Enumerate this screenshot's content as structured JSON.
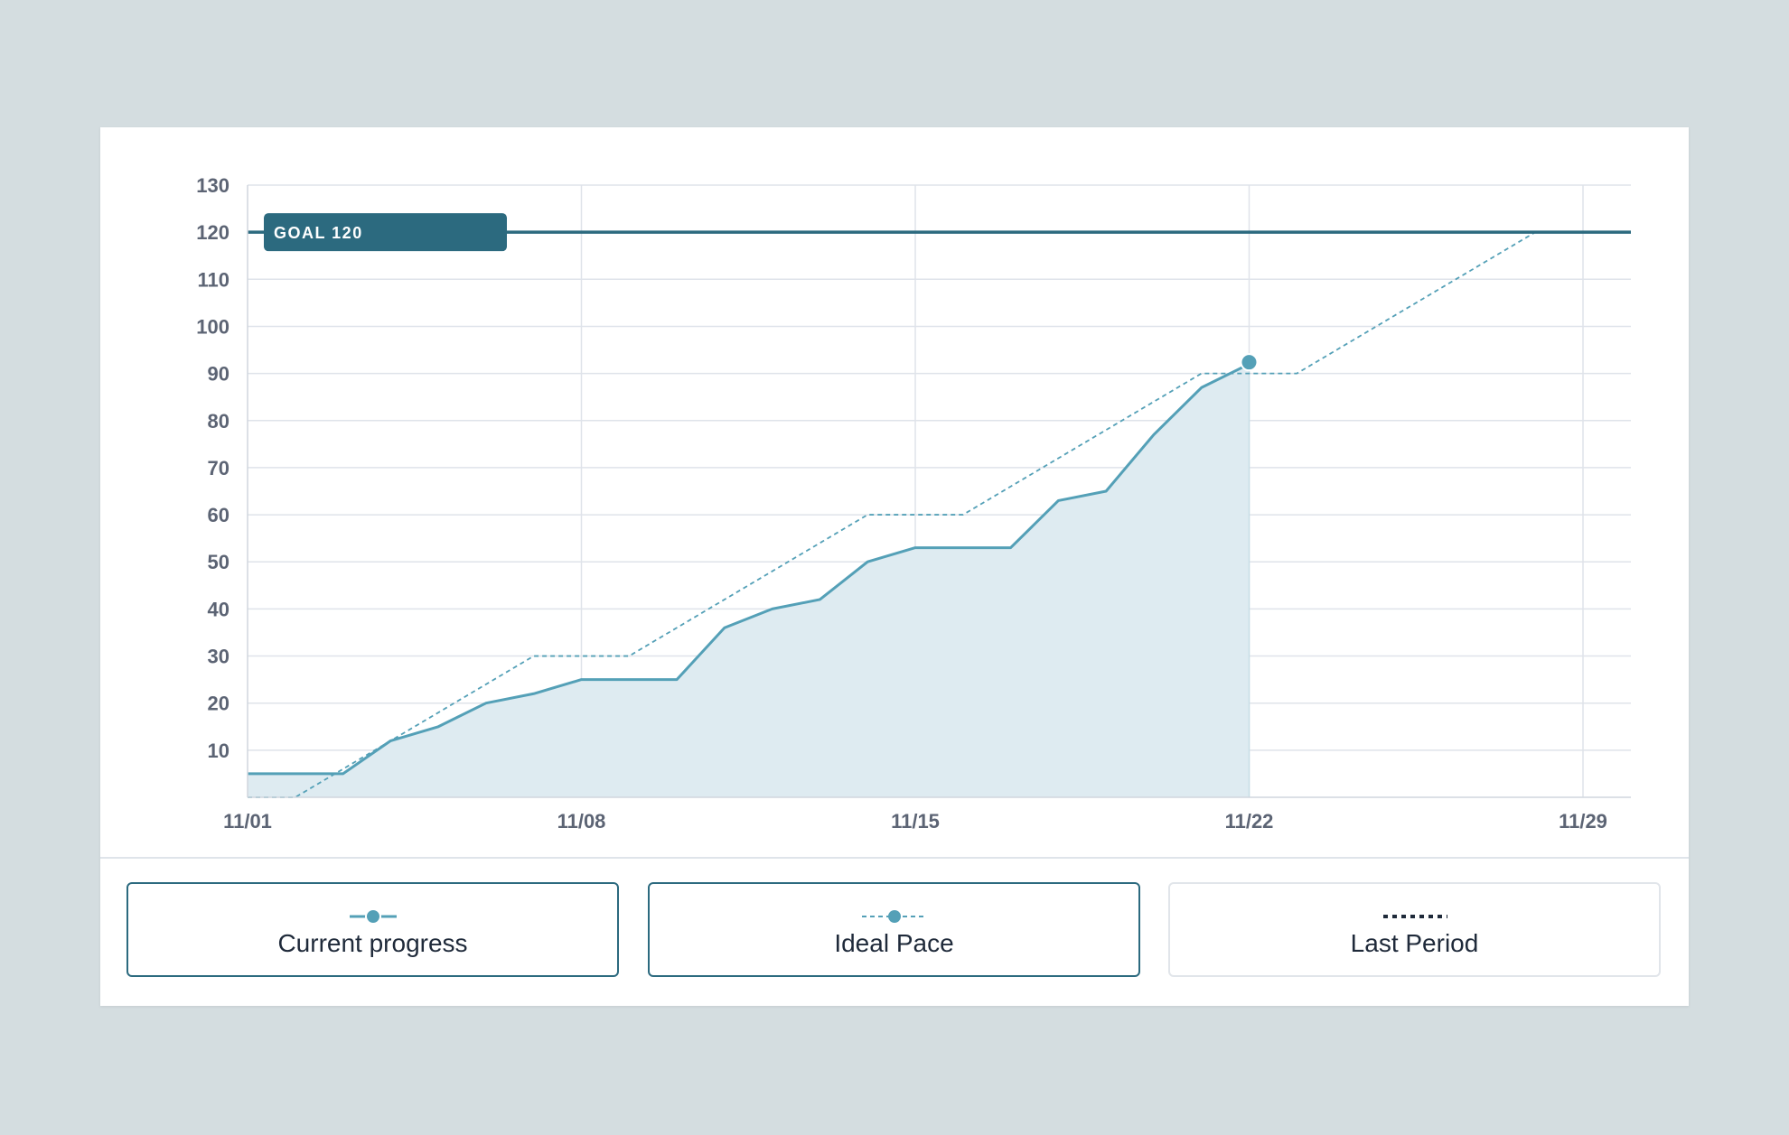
{
  "colors": {
    "background": "#d4dde0",
    "card": "#ffffff",
    "goal": "#2c6a7f",
    "current": "#54a0b7",
    "area": "#deebf1",
    "grid": "#dfe3ea",
    "axis_text": "#5c6474",
    "legend_border_active": "#2c6a7f",
    "legend_border_inactive": "#e1e5ea",
    "last_period": "#1f2a3a"
  },
  "chart_data": {
    "type": "line",
    "ylim": [
      0,
      130
    ],
    "yticks": [
      10,
      20,
      30,
      40,
      50,
      60,
      70,
      80,
      90,
      100,
      110,
      120,
      130
    ],
    "ytick_labels": [
      "10",
      "20",
      "30",
      "40",
      "50",
      "60",
      "70",
      "80",
      "90",
      "100",
      "110",
      "120",
      "130"
    ],
    "xlim": [
      "11/01",
      "11/30"
    ],
    "xticks": [
      "11/01",
      "11/08",
      "11/15",
      "11/22",
      "11/29"
    ],
    "grid": true,
    "goal": {
      "value": 120,
      "label": "GOAL 120"
    },
    "series": [
      {
        "name": "Current progress",
        "style": "solid-area",
        "points": [
          [
            "11/01",
            5
          ],
          [
            "11/02",
            5
          ],
          [
            "11/03",
            5
          ],
          [
            "11/04",
            12
          ],
          [
            "11/05",
            15
          ],
          [
            "11/06",
            20
          ],
          [
            "11/07",
            22
          ],
          [
            "11/08",
            25
          ],
          [
            "11/09",
            25
          ],
          [
            "11/10",
            25
          ],
          [
            "11/11",
            36
          ],
          [
            "11/12",
            40
          ],
          [
            "11/13",
            42
          ],
          [
            "11/14",
            50
          ],
          [
            "11/15",
            53
          ],
          [
            "11/16",
            53
          ],
          [
            "11/17",
            53
          ],
          [
            "11/18",
            63
          ],
          [
            "11/19",
            65
          ],
          [
            "11/20",
            77
          ],
          [
            "11/21",
            87
          ],
          [
            "11/22",
            92
          ]
        ]
      },
      {
        "name": "Ideal Pace",
        "style": "dashed",
        "points": [
          [
            "11/01",
            0
          ],
          [
            "11/02",
            0
          ],
          [
            "11/07",
            30
          ],
          [
            "11/09",
            30
          ],
          [
            "11/14",
            60
          ],
          [
            "11/16",
            60
          ],
          [
            "11/21",
            90
          ],
          [
            "11/23",
            90
          ],
          [
            "11/28",
            120
          ],
          [
            "11/30",
            120
          ]
        ]
      }
    ]
  },
  "legend": {
    "items": [
      {
        "label": "Current progress",
        "active": true
      },
      {
        "label": "Ideal Pace",
        "active": true
      },
      {
        "label": "Last Period",
        "active": false
      }
    ]
  }
}
